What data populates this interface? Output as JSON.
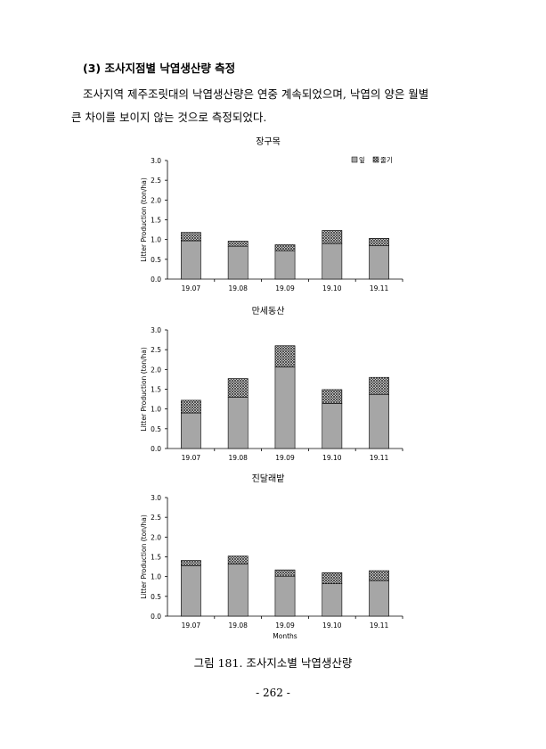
{
  "heading": "(3) 조사지점별 낙엽생산량 측정",
  "paragraph": {
    "line1": "조사지역 제주조릿대의 낙엽생산량은 연중 계속되었으며, 낙엽의 양은 월별",
    "line2": "큰 차이를 보이지 않는 것으로 측정되었다."
  },
  "legend": [
    "잎",
    "줄기"
  ],
  "colors": {
    "leaf": "#a6a6a6",
    "stem_pattern": "crosshatch"
  },
  "chart_data": [
    {
      "type": "bar",
      "stacked": true,
      "title": "장구목",
      "categories": [
        "19.07",
        "19.08",
        "19.09",
        "19.10",
        "19.11"
      ],
      "series": [
        {
          "name": "잎",
          "values": [
            0.97,
            0.83,
            0.72,
            0.9,
            0.85
          ]
        },
        {
          "name": "줄기",
          "values": [
            0.21,
            0.13,
            0.15,
            0.33,
            0.18
          ]
        }
      ],
      "ylabel": "Litter Production (ton/ha)",
      "xlabel": "",
      "ylim": [
        0,
        3.0
      ],
      "yticks": [
        "0.0",
        "0.5",
        "1.0",
        "1.5",
        "2.0",
        "2.5",
        "3.0"
      ],
      "legend_position": "top-right"
    },
    {
      "type": "bar",
      "stacked": true,
      "title": "만세동산",
      "categories": [
        "19.07",
        "19.08",
        "19.09",
        "19.10",
        "19.11"
      ],
      "series": [
        {
          "name": "잎",
          "values": [
            0.9,
            1.3,
            2.06,
            1.14,
            1.37
          ]
        },
        {
          "name": "줄기",
          "values": [
            0.32,
            0.47,
            0.54,
            0.35,
            0.43
          ]
        }
      ],
      "ylabel": "Litter Production (ton/ha)",
      "xlabel": "",
      "ylim": [
        0,
        3.0
      ],
      "yticks": [
        "0.0",
        "0.5",
        "1.0",
        "1.5",
        "2.0",
        "2.5",
        "3.0"
      ]
    },
    {
      "type": "bar",
      "stacked": true,
      "title": "진달래밭",
      "categories": [
        "19.07",
        "19.08",
        "19.09",
        "19.10",
        "19.11"
      ],
      "series": [
        {
          "name": "잎",
          "values": [
            1.27,
            1.32,
            1.01,
            0.82,
            0.9
          ]
        },
        {
          "name": "줄기",
          "values": [
            0.14,
            0.2,
            0.16,
            0.28,
            0.25
          ]
        }
      ],
      "ylabel": "Litter Production (ton/ha)",
      "xlabel": "Months",
      "ylim": [
        0,
        3.0
      ],
      "yticks": [
        "0.0",
        "0.5",
        "1.0",
        "1.5",
        "2.0",
        "2.5",
        "3.0"
      ]
    }
  ],
  "caption": "그림 181. 조사지소별 낙엽생산량",
  "page_number": "- 262 -"
}
